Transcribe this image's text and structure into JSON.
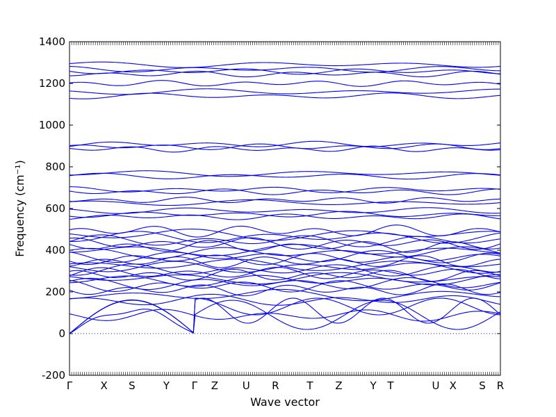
{
  "chart_data": {
    "type": "line",
    "title": "",
    "xlabel": "Wave vector",
    "ylabel": "Frequency (cm⁻¹)",
    "ylim": [
      -200,
      1400
    ],
    "y_ticks": [
      -200,
      0,
      200,
      400,
      600,
      800,
      1000,
      1200,
      1400
    ],
    "x_ticks": [
      "Γ",
      "X",
      "S",
      "Y",
      "Γ",
      "Z",
      "U",
      "R",
      "T",
      "Z",
      "Y",
      "T",
      "U",
      "X",
      "S",
      "R"
    ],
    "x_tick_positions": [
      0,
      0.08,
      0.145,
      0.225,
      0.29,
      0.337,
      0.41,
      0.478,
      0.558,
      0.625,
      0.705,
      0.745,
      0.85,
      0.89,
      0.958,
      1.0
    ],
    "grid": false,
    "line_color": "#0000ee",
    "zero_line_color": "#0000ee",
    "acoustic_branch_max": 190,
    "flat_bands": [
      1290,
      1268,
      1258,
      1245,
      1200,
      1160,
      1140,
      908,
      896,
      885,
      768,
      755,
      690,
      680,
      640,
      628,
      590,
      572,
      560,
      492,
      475,
      462,
      445,
      432,
      418,
      400,
      388,
      370,
      358,
      345,
      330,
      318,
      305,
      290,
      280,
      265,
      255,
      240,
      228,
      210,
      185,
      160,
      88
    ],
    "band_amplitude": 12
  }
}
